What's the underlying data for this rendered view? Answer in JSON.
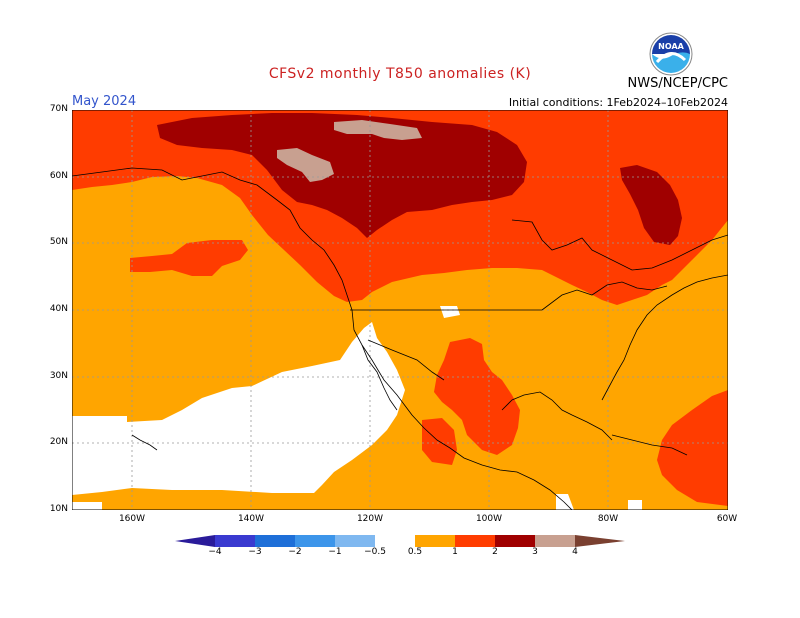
{
  "header": {
    "title": "CFSv2 monthly T850 anomalies (K)",
    "agency": "NWS/NCEP/CPC",
    "month": "May 2024",
    "initial_conditions": "Initial conditions: 1Feb2024–10Feb2024"
  },
  "logo": {
    "text": "NOAA",
    "icon": "noaa-logo-icon"
  },
  "map": {
    "lat_labels": [
      "70N",
      "60N",
      "50N",
      "40N",
      "30N",
      "20N",
      "10N"
    ],
    "lon_labels": [
      "160W",
      "140W",
      "120W",
      "100W",
      "80W",
      "60W"
    ]
  },
  "colorbar": {
    "labels": [
      "−4",
      "−3",
      "−2",
      "−1",
      "−0.5",
      "0.5",
      "1",
      "2",
      "3",
      "4"
    ],
    "colors": [
      "#2a1b9a",
      "#3a3ad0",
      "#1e6fd8",
      "#3c95ea",
      "#7fb8f0",
      "#ffffff",
      "#ffa500",
      "#ff3c00",
      "#a00000",
      "#c8a090",
      "#7a4030"
    ]
  },
  "legend_colors": {
    "white": "#ffffff",
    "orange": "#ffa500",
    "red_orange": "#ff3c00",
    "dark_red": "#a00000",
    "pink_brown": "#c8a090"
  }
}
